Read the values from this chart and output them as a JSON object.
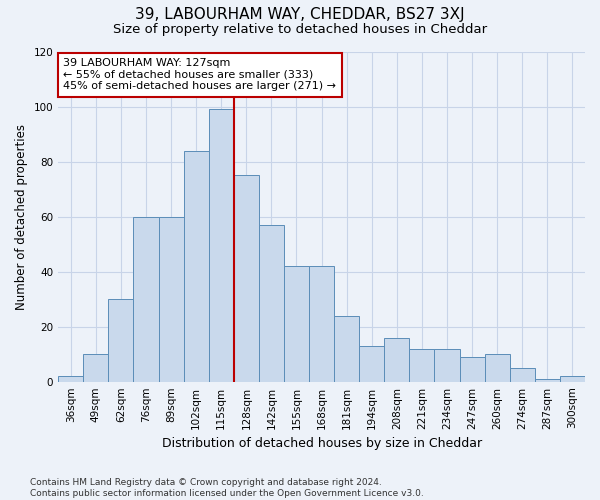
{
  "title": "39, LABOURHAM WAY, CHEDDAR, BS27 3XJ",
  "subtitle": "Size of property relative to detached houses in Cheddar",
  "xlabel": "Distribution of detached houses by size in Cheddar",
  "ylabel": "Number of detached properties",
  "categories": [
    "36sqm",
    "49sqm",
    "62sqm",
    "76sqm",
    "89sqm",
    "102sqm",
    "115sqm",
    "128sqm",
    "142sqm",
    "155sqm",
    "168sqm",
    "181sqm",
    "194sqm",
    "208sqm",
    "221sqm",
    "234sqm",
    "247sqm",
    "260sqm",
    "274sqm",
    "287sqm",
    "300sqm"
  ],
  "values": [
    2,
    10,
    30,
    60,
    60,
    84,
    99,
    75,
    57,
    42,
    42,
    24,
    13,
    16,
    12,
    12,
    9,
    10,
    5,
    1,
    2
  ],
  "bar_color": "#c9d9ec",
  "bar_edge_color": "#5b8db8",
  "vline_pos": 6.5,
  "vline_color": "#bb0000",
  "annotation_text": "39 LABOURHAM WAY: 127sqm\n← 55% of detached houses are smaller (333)\n45% of semi-detached houses are larger (271) →",
  "annotation_box_facecolor": "#ffffff",
  "annotation_box_edgecolor": "#bb0000",
  "ylim": [
    0,
    120
  ],
  "yticks": [
    0,
    20,
    40,
    60,
    80,
    100,
    120
  ],
  "grid_color": "#c8d4e8",
  "background_color": "#edf2f9",
  "footer_text": "Contains HM Land Registry data © Crown copyright and database right 2024.\nContains public sector information licensed under the Open Government Licence v3.0.",
  "title_fontsize": 11,
  "subtitle_fontsize": 9.5,
  "xlabel_fontsize": 9,
  "ylabel_fontsize": 8.5,
  "tick_fontsize": 7.5,
  "annotation_fontsize": 8,
  "footer_fontsize": 6.5
}
